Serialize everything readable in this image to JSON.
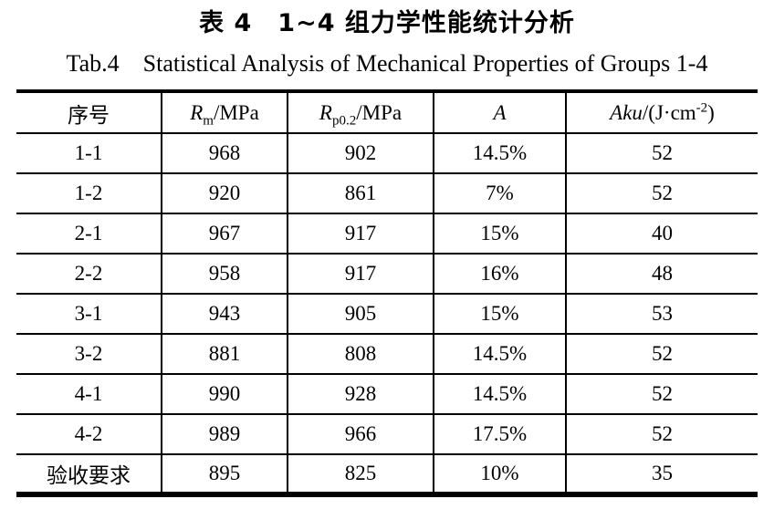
{
  "page": {
    "title_cn": "表 4　1~4 组力学性能统计分析",
    "title_en": "Tab.4　Statistical Analysis of Mechanical Properties of Groups 1-4"
  },
  "table": {
    "headers": {
      "col0": {
        "text": "序号"
      },
      "col1": {
        "sym": "R",
        "sub": "m",
        "rest": "/MPa"
      },
      "col2": {
        "sym": "R",
        "sub": "p0.2",
        "rest": "/MPa"
      },
      "col3": {
        "sym": "A"
      },
      "col4": {
        "sym": "Aku",
        "rest": "/(J·cm",
        "sup": "-2",
        "close": ")"
      }
    },
    "rows": [
      [
        "1-1",
        "968",
        "902",
        "14.5%",
        "52"
      ],
      [
        "1-2",
        "920",
        "861",
        "7%",
        "52"
      ],
      [
        "2-1",
        "967",
        "917",
        "15%",
        "40"
      ],
      [
        "2-2",
        "958",
        "917",
        "16%",
        "48"
      ],
      [
        "3-1",
        "943",
        "905",
        "15%",
        "53"
      ],
      [
        "3-2",
        "881",
        "808",
        "14.5%",
        "52"
      ],
      [
        "4-1",
        "990",
        "928",
        "14.5%",
        "52"
      ],
      [
        "4-2",
        "989",
        "966",
        "17.5%",
        "52"
      ],
      [
        "验收要求",
        "895",
        "825",
        "10%",
        "35"
      ]
    ]
  },
  "colors": {
    "text": "#000000",
    "border": "#000000",
    "background": "#ffffff"
  }
}
